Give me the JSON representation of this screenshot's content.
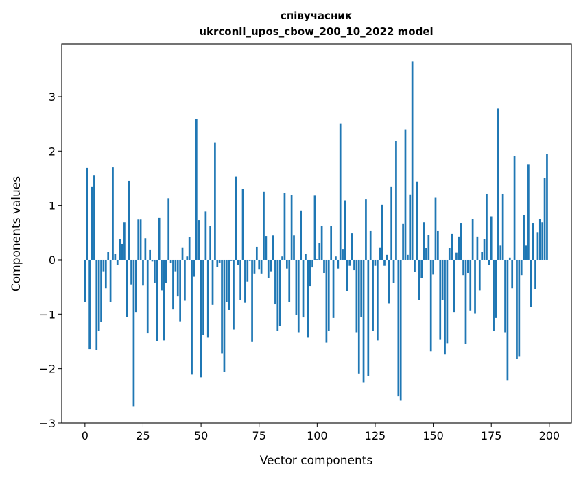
{
  "chart_data": {
    "type": "bar",
    "title": "співучасник",
    "subtitle": "ukrconll_upos_cbow_200_10_2022 model",
    "xlabel": "Vector components",
    "ylabel": "Components values",
    "xlim": [
      -10,
      209.5
    ],
    "ylim": [
      -3.0,
      3.97
    ],
    "xticks": [
      0,
      25,
      50,
      75,
      100,
      125,
      150,
      175,
      200
    ],
    "yticks": [
      -3,
      -2,
      -1,
      0,
      1,
      2,
      3
    ],
    "ytick_labels": [
      "−3",
      "−2",
      "−1",
      "0",
      "1",
      "2",
      "3"
    ],
    "grid": false,
    "color": "#1f77b4",
    "values": [
      -0.78,
      1.69,
      -1.64,
      1.35,
      1.56,
      -1.66,
      -1.3,
      -1.14,
      -0.21,
      -0.52,
      0.15,
      -0.78,
      1.7,
      0.11,
      -0.09,
      0.39,
      0.29,
      0.69,
      -1.05,
      1.45,
      -0.45,
      -2.69,
      -0.96,
      0.74,
      0.74,
      -0.47,
      0.4,
      -1.35,
      0.19,
      -0.03,
      -0.42,
      -1.49,
      0.77,
      -0.56,
      -1.48,
      -0.42,
      1.13,
      -0.06,
      -0.91,
      -0.21,
      -0.67,
      -1.13,
      0.23,
      -0.75,
      0.06,
      0.42,
      -2.11,
      -0.31,
      2.59,
      0.73,
      -2.16,
      -1.38,
      0.89,
      -1.43,
      0.63,
      -0.83,
      2.16,
      -0.13,
      -0.05,
      -1.72,
      -2.06,
      -0.77,
      -0.92,
      -0.01,
      -1.28,
      1.53,
      -0.09,
      -0.74,
      1.3,
      -0.79,
      -0.4,
      -0.01,
      -1.51,
      -0.25,
      0.24,
      -0.18,
      -0.25,
      1.25,
      0.44,
      -0.34,
      -0.21,
      0.45,
      -0.82,
      -1.3,
      -1.22,
      0.06,
      1.23,
      -0.16,
      -0.78,
      1.19,
      0.45,
      -1.02,
      -1.33,
      0.91,
      -1.06,
      0.11,
      -1.43,
      -0.48,
      -0.14,
      1.18,
      0.01,
      0.31,
      0.63,
      -0.24,
      -1.52,
      -1.3,
      0.62,
      -1.07,
      0.06,
      -0.16,
      2.5,
      0.2,
      1.09,
      -0.58,
      -0.11,
      0.49,
      -0.19,
      -1.33,
      -2.09,
      -1.05,
      -2.25,
      1.12,
      -2.13,
      0.53,
      -1.31,
      -0.11,
      -1.48,
      0.23,
      1.01,
      -0.11,
      0.09,
      -0.8,
      1.35,
      -0.42,
      2.19,
      -2.51,
      -2.59,
      0.67,
      2.4,
      0.09,
      1.2,
      3.65,
      -0.22,
      1.44,
      -0.74,
      -0.33,
      0.69,
      0.22,
      0.46,
      -1.68,
      -0.27,
      1.14,
      0.53,
      -1.47,
      -0.74,
      -1.73,
      -1.53,
      0.22,
      0.48,
      -0.96,
      0.13,
      0.43,
      0.68,
      -0.28,
      -1.55,
      -0.24,
      -0.93,
      0.75,
      -0.99,
      0.43,
      -0.56,
      0.14,
      0.39,
      1.21,
      -0.09,
      0.8,
      -1.31,
      -1.07,
      2.78,
      0.26,
      1.21,
      -1.33,
      -2.21,
      0.04,
      -0.52,
      1.91,
      -1.82,
      -1.77,
      -0.28,
      0.83,
      0.26,
      1.76,
      -0.86,
      0.68,
      -0.54,
      0.5,
      0.75,
      0.69,
      1.5,
      1.95
    ]
  }
}
